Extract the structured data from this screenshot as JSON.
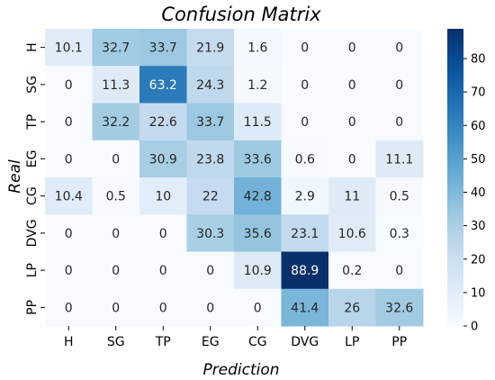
{
  "chart_data": {
    "type": "heatmap",
    "title": "Confusion Matrix",
    "xlabel": "Prediction",
    "ylabel": "Real",
    "x_categories": [
      "H",
      "SG",
      "TP",
      "EG",
      "CG",
      "DVG",
      "LP",
      "PP"
    ],
    "y_categories": [
      "H",
      "SG",
      "TP",
      "EG",
      "CG",
      "DVG",
      "LP",
      "PP"
    ],
    "values": [
      [
        10.1,
        32.7,
        33.7,
        21.9,
        1.6,
        0,
        0,
        0
      ],
      [
        0,
        11.3,
        63.2,
        24.3,
        1.2,
        0,
        0,
        0
      ],
      [
        0,
        32.2,
        22.6,
        33.7,
        11.5,
        0,
        0,
        0
      ],
      [
        0,
        0,
        30.9,
        23.8,
        33.6,
        0.6,
        0,
        11.1
      ],
      [
        10.4,
        0.5,
        10,
        22,
        42.8,
        2.9,
        11,
        0.5
      ],
      [
        0,
        0,
        0,
        30.3,
        35.6,
        23.1,
        10.6,
        0.3
      ],
      [
        0,
        0,
        0,
        0,
        10.9,
        88.9,
        0.2,
        0
      ],
      [
        0,
        0,
        0,
        0,
        0,
        41.4,
        26,
        32.6
      ]
    ],
    "colorbar": {
      "min": 0,
      "max": 88.9,
      "ticks": [
        0,
        10,
        20,
        30,
        40,
        50,
        60,
        70,
        80
      ],
      "colormap": "Blues",
      "color_low": "#f7fbff",
      "color_high": "#08306b"
    },
    "grid": false
  }
}
